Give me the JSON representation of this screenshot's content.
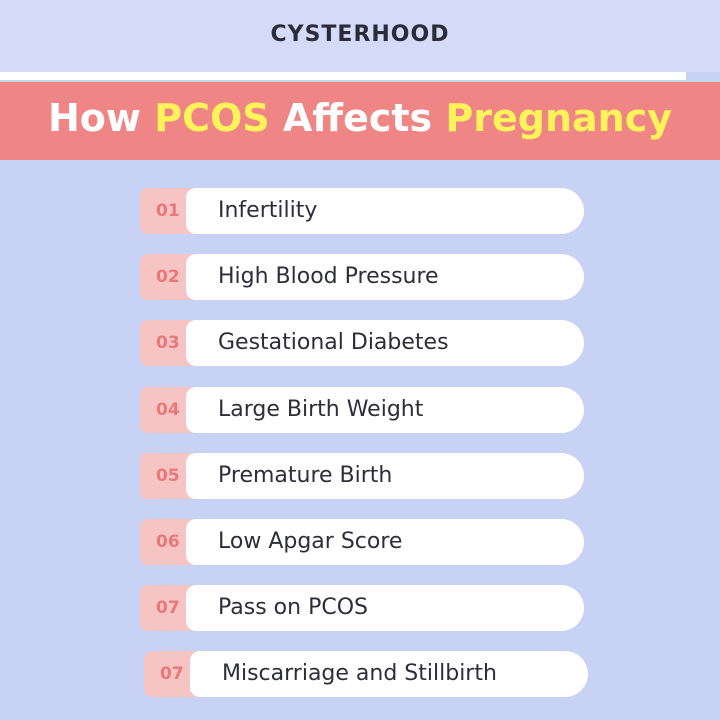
{
  "brand": "CYSTERHOOD",
  "title": {
    "parts": [
      {
        "text": "How ",
        "highlight": false
      },
      {
        "text": "PCOS",
        "highlight": true
      },
      {
        "text": " Affects ",
        "highlight": false
      },
      {
        "text": "Pregnancy",
        "highlight": true
      }
    ]
  },
  "items": [
    {
      "number": "01",
      "label": "Infertility"
    },
    {
      "number": "02",
      "label": "High Blood Pressure"
    },
    {
      "number": "03",
      "label": "Gestational Diabetes"
    },
    {
      "number": "04",
      "label": "Large Birth Weight"
    },
    {
      "number": "05",
      "label": "Premature Birth"
    },
    {
      "number": "06",
      "label": "Low Apgar Score"
    },
    {
      "number": "07",
      "label": "Pass on PCOS"
    },
    {
      "number": "07",
      "label": "Miscarriage and Stillbirth"
    }
  ]
}
